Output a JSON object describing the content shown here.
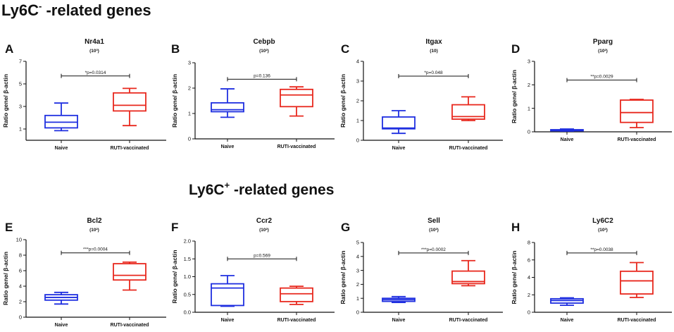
{
  "sections": [
    {
      "prefix": "Ly6C",
      "sup": "-",
      "suffix": " -related genes"
    },
    {
      "prefix": "Ly6C",
      "sup": "+",
      "suffix": " -related genes"
    }
  ],
  "colors": {
    "naive": "#1f2fe0",
    "vaccinated": "#e8281e",
    "axis": "#111111"
  },
  "chart_data": [
    {
      "type": "box",
      "letter": "A",
      "title": "Nr4a1",
      "subtitle": "(10³)",
      "ylabel": "Ratio gene/ β-actin",
      "categories": [
        "Naive",
        "RUTI-vaccinated"
      ],
      "ylim": [
        0,
        7
      ],
      "yticks": [
        1,
        3,
        5,
        7
      ],
      "boxes": [
        {
          "name": "Naive",
          "color": "#1f2fe0",
          "min": 0.85,
          "q1": 1.1,
          "median": 1.6,
          "q3": 2.2,
          "max": 3.3
        },
        {
          "name": "RUTI-vaccinated",
          "color": "#e8281e",
          "min": 1.3,
          "q1": 2.6,
          "median": 3.1,
          "q3": 4.2,
          "max": 4.6
        }
      ],
      "significance": "*p=0.0314",
      "sig_y": 5.7
    },
    {
      "type": "box",
      "letter": "B",
      "title": "Cebpb",
      "subtitle": "(10²)",
      "ylabel": "Ratio gene/ β-actin",
      "categories": [
        "Naive",
        "RUTI-vaccinated"
      ],
      "ylim": [
        0,
        3
      ],
      "yticks": [
        0,
        1,
        2,
        3
      ],
      "boxes": [
        {
          "name": "Naive",
          "color": "#1f2fe0",
          "min": 0.85,
          "q1": 1.07,
          "median": 1.15,
          "q3": 1.42,
          "max": 1.97
        },
        {
          "name": "RUTI-vaccinated",
          "color": "#e8281e",
          "min": 0.9,
          "q1": 1.27,
          "median": 1.73,
          "q3": 1.95,
          "max": 2.05
        }
      ],
      "significance": "p=0.136",
      "sig_y": 2.35
    },
    {
      "type": "box",
      "letter": "C",
      "title": "Itgax",
      "subtitle": "(10)",
      "ylabel": "Ratio gene/ β-actin",
      "categories": [
        "Naive",
        "RUTI-vaccinated"
      ],
      "ylim": [
        0,
        4
      ],
      "yticks": [
        0,
        1,
        2,
        3,
        4
      ],
      "boxes": [
        {
          "name": "Naive",
          "color": "#1f2fe0",
          "min": 0.35,
          "q1": 0.58,
          "median": 0.62,
          "q3": 1.18,
          "max": 1.5
        },
        {
          "name": "RUTI-vaccinated",
          "color": "#e8281e",
          "min": 1.0,
          "q1": 1.07,
          "median": 1.2,
          "q3": 1.8,
          "max": 2.2
        }
      ],
      "significance": "*p=0.048",
      "sig_y": 3.25
    },
    {
      "type": "box",
      "letter": "D",
      "title": "Pparg",
      "subtitle": "(10²)",
      "ylabel": "Ratio gene/ β-actin",
      "categories": [
        "Naive",
        "RUTI-vaccinated"
      ],
      "ylim": [
        0,
        3
      ],
      "yticks": [
        0,
        1,
        2,
        3
      ],
      "boxes": [
        {
          "name": "Naive",
          "color": "#1f2fe0",
          "min": 0.03,
          "q1": 0.05,
          "median": 0.07,
          "q3": 0.09,
          "max": 0.12
        },
        {
          "name": "RUTI-vaccinated",
          "color": "#e8281e",
          "min": 0.18,
          "q1": 0.4,
          "median": 0.82,
          "q3": 1.35,
          "max": 1.38
        }
      ],
      "significance": "**p=0.0029",
      "sig_y": 2.2
    },
    {
      "type": "box",
      "letter": "E",
      "title": "Bcl2",
      "subtitle": "(10²)",
      "ylabel": "Ratio gene/ β-actin",
      "categories": [
        "Naive",
        "RUTI-vaccinated"
      ],
      "ylim": [
        0,
        10
      ],
      "yticks": [
        0,
        2,
        4,
        6,
        8,
        10
      ],
      "boxes": [
        {
          "name": "Naive",
          "color": "#1f2fe0",
          "min": 1.7,
          "q1": 2.2,
          "median": 2.55,
          "q3": 2.9,
          "max": 3.2
        },
        {
          "name": "RUTI-vaccinated",
          "color": "#e8281e",
          "min": 3.5,
          "q1": 4.8,
          "median": 5.4,
          "q3": 6.9,
          "max": 7.1
        }
      ],
      "significance": "***p=0.0004",
      "sig_y": 8.3
    },
    {
      "type": "box",
      "letter": "F",
      "title": "Ccr2",
      "subtitle": "(10²)",
      "ylabel": "Ratio gene/ β-actin",
      "categories": [
        "Naive",
        "RUTI-vaccinated"
      ],
      "ylim": [
        0,
        2
      ],
      "yticks": [
        0,
        0.5,
        1,
        1.5,
        2
      ],
      "tick_labels": [
        "0.0",
        "0.5",
        "1.0",
        "1.5",
        "2.0"
      ],
      "boxes": [
        {
          "name": "Naive",
          "color": "#1f2fe0",
          "min": 0.17,
          "q1": 0.19,
          "median": 0.68,
          "q3": 0.8,
          "max": 1.03
        },
        {
          "name": "RUTI-vaccinated",
          "color": "#e8281e",
          "min": 0.22,
          "q1": 0.3,
          "median": 0.52,
          "q3": 0.68,
          "max": 0.73
        }
      ],
      "significance": "p=0.569",
      "sig_y": 1.5
    },
    {
      "type": "box",
      "letter": "G",
      "title": "Sell",
      "subtitle": "(10²)",
      "ylabel": "Ratio gene/ β-actin",
      "categories": [
        "Naive",
        "RUTI-vaccinated"
      ],
      "ylim": [
        0,
        5
      ],
      "yticks": [
        0,
        1,
        2,
        3,
        4,
        5
      ],
      "boxes": [
        {
          "name": "Naive",
          "color": "#1f2fe0",
          "min": 0.7,
          "q1": 0.78,
          "median": 0.9,
          "q3": 1.0,
          "max": 1.12
        },
        {
          "name": "RUTI-vaccinated",
          "color": "#e8281e",
          "min": 1.9,
          "q1": 2.05,
          "median": 2.2,
          "q3": 2.95,
          "max": 3.7
        }
      ],
      "significance": "***p=0.0002",
      "sig_y": 4.25
    },
    {
      "type": "box",
      "letter": "H",
      "title": "Ly6C2",
      "subtitle": "(10²)",
      "ylabel": "Ratio gene/ β-actin",
      "categories": [
        "Naive",
        "RUTI-vaccinated"
      ],
      "ylim": [
        0,
        8
      ],
      "yticks": [
        0,
        2,
        4,
        6,
        8
      ],
      "boxes": [
        {
          "name": "Naive",
          "color": "#1f2fe0",
          "min": 0.8,
          "q1": 1.05,
          "median": 1.35,
          "q3": 1.55,
          "max": 1.65
        },
        {
          "name": "RUTI-vaccinated",
          "color": "#e8281e",
          "min": 1.7,
          "q1": 2.1,
          "median": 3.6,
          "q3": 4.7,
          "max": 5.7
        }
      ],
      "significance": "**p=0.0038",
      "sig_y": 6.8
    }
  ]
}
